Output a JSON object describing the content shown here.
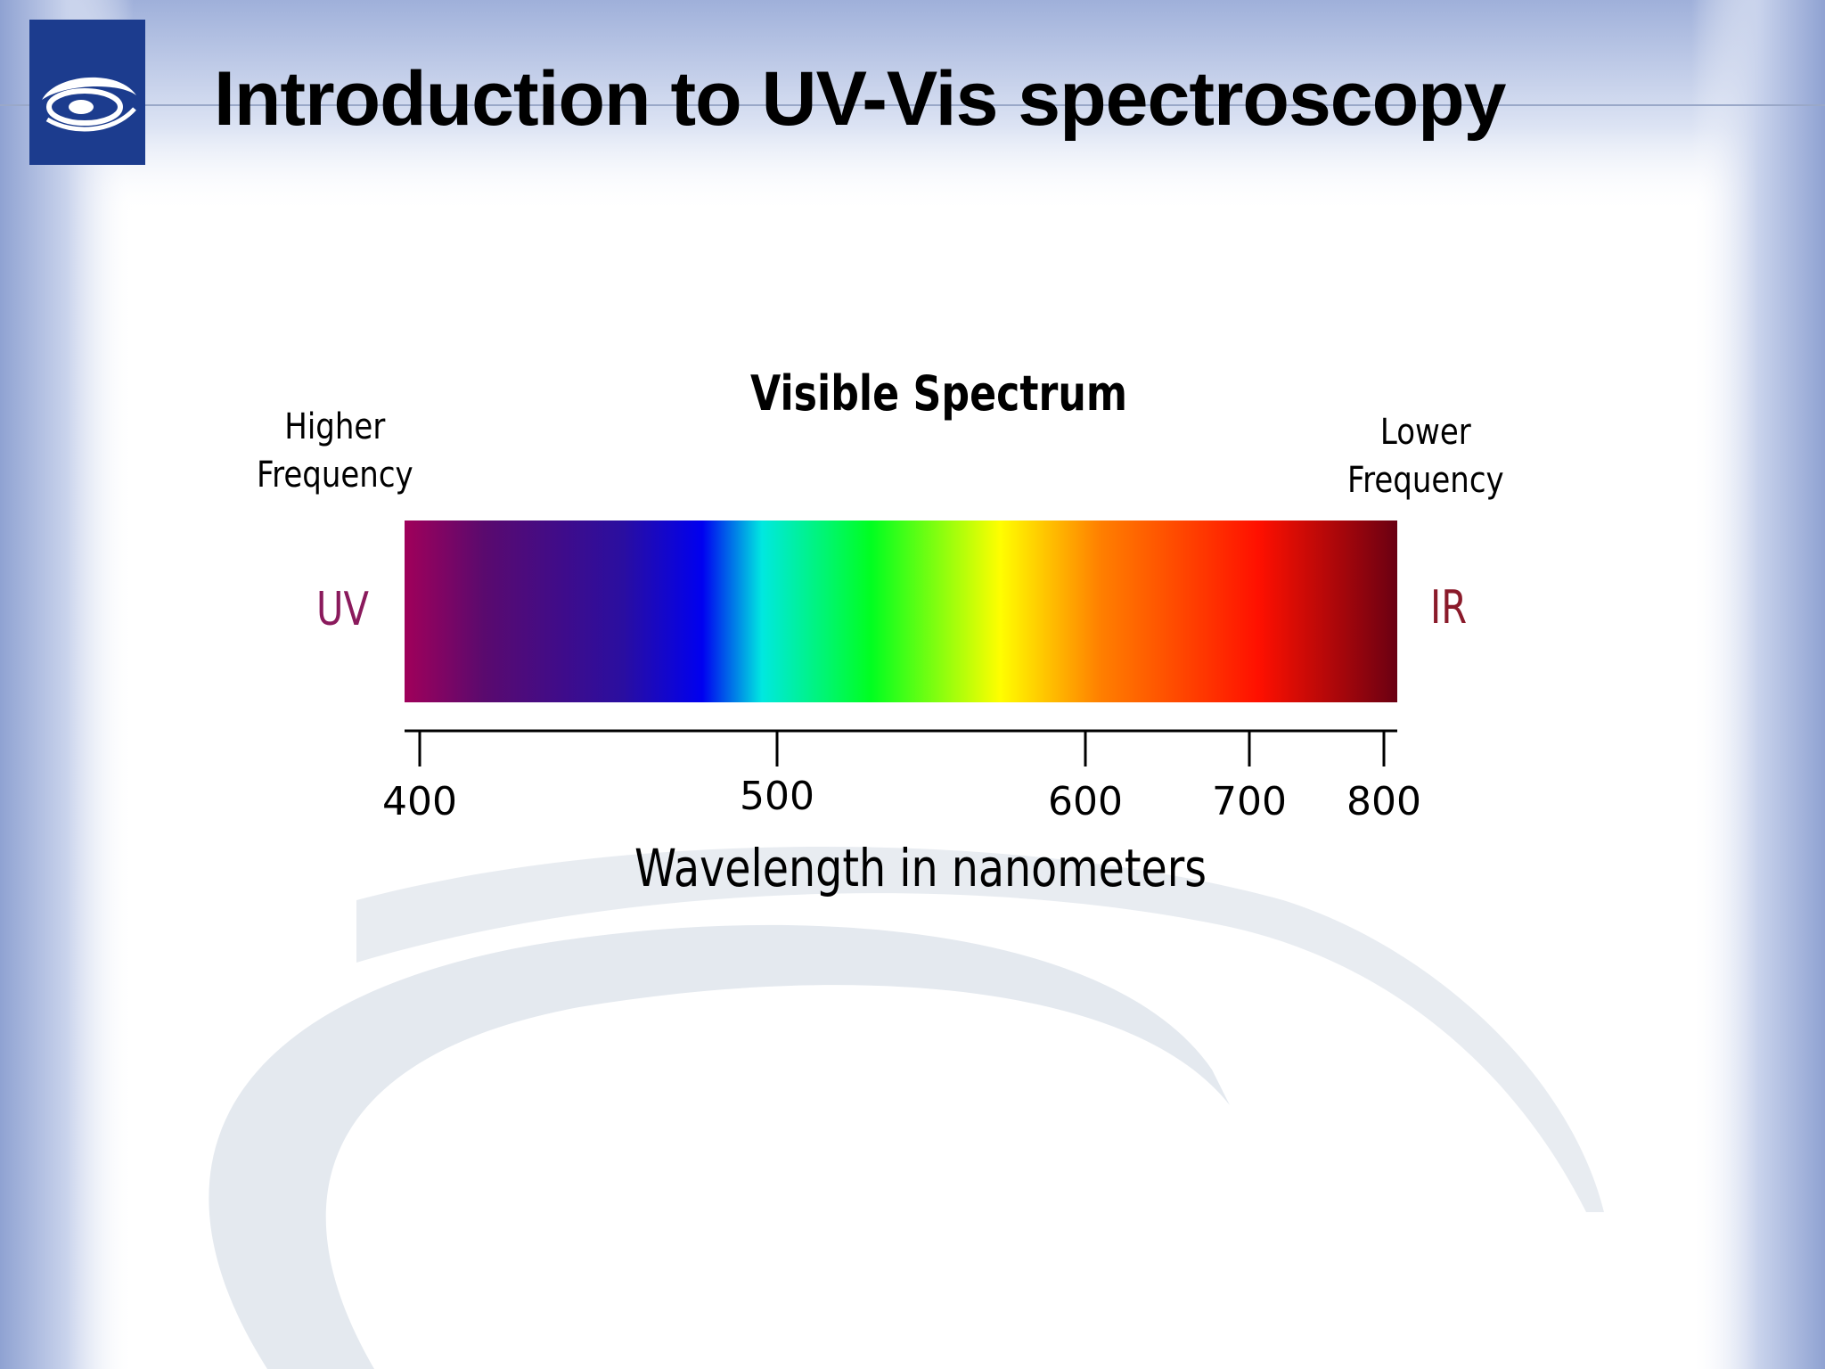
{
  "slide": {
    "title": "Introduction to UV-Vis spectroscopy"
  },
  "diagram": {
    "heading": "Visible Spectrum",
    "higher_frequency": "Higher\nFrequency",
    "lower_frequency": "Lower\nFrequency",
    "left_region": "UV",
    "right_region": "IR",
    "axis_label": "Wavelength in nanometers",
    "ticks": [
      "400",
      "500",
      "600",
      "700",
      "800"
    ],
    "colors": {
      "uv_label": "#8a1a5c",
      "ir_label": "#8a1a2a",
      "logo_background": "#1c3c8e"
    },
    "spectrum_stops": [
      "#a0005a",
      "#5a0a6e",
      "#2a0ea0",
      "#0000f0",
      "#00e8e0",
      "#00ff20",
      "#fffe00",
      "#ff8000",
      "#ff1000",
      "#6a0012"
    ]
  }
}
